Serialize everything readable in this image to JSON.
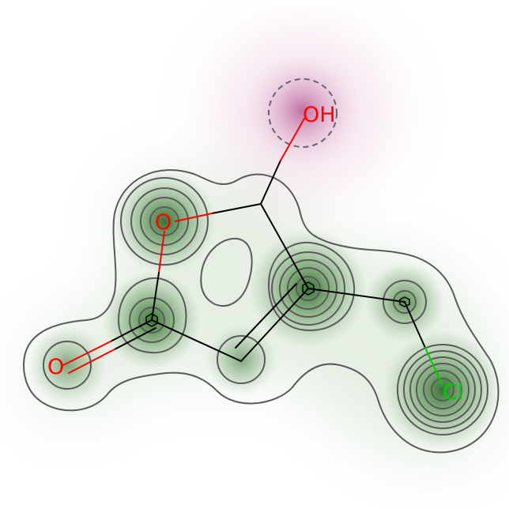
{
  "molecule": {
    "atoms": [
      {
        "id": "c_oh",
        "label": ""
      },
      {
        "id": "o_oh",
        "label": "OH"
      },
      {
        "id": "o_ring",
        "label": "O"
      },
      {
        "id": "c_carbonyl",
        "label": ""
      },
      {
        "id": "o_carbonyl",
        "label": "O"
      },
      {
        "id": "c_ring_low",
        "label": ""
      },
      {
        "id": "c_ring_right",
        "label": ""
      },
      {
        "id": "c_ch2",
        "label": ""
      },
      {
        "id": "cl",
        "label": "Cl"
      }
    ],
    "bonds": [
      {
        "a": "c_oh",
        "b": "o_oh",
        "order": 1
      },
      {
        "a": "c_oh",
        "b": "o_ring",
        "order": 1
      },
      {
        "a": "o_ring",
        "b": "c_carbonyl",
        "order": 1
      },
      {
        "a": "c_carbonyl",
        "b": "o_carbonyl",
        "order": 2
      },
      {
        "a": "c_carbonyl",
        "b": "c_ring_low",
        "order": 1
      },
      {
        "a": "c_ring_low",
        "b": "c_ring_right",
        "order": 2
      },
      {
        "a": "c_ring_right",
        "b": "c_oh",
        "order": 1
      },
      {
        "a": "c_ring_right",
        "b": "c_ch2",
        "order": 1
      },
      {
        "a": "c_ch2",
        "b": "cl",
        "order": 1
      }
    ],
    "colors": {
      "oxygen": "#ff0000",
      "chlorine": "#00cc00",
      "carbon_bond": "#000000",
      "positive_contribution": "#2f6b2a",
      "negative_contribution": "#b04a8a",
      "contour_line": "#5a5a5a",
      "highlight_circle": "#666666"
    }
  }
}
